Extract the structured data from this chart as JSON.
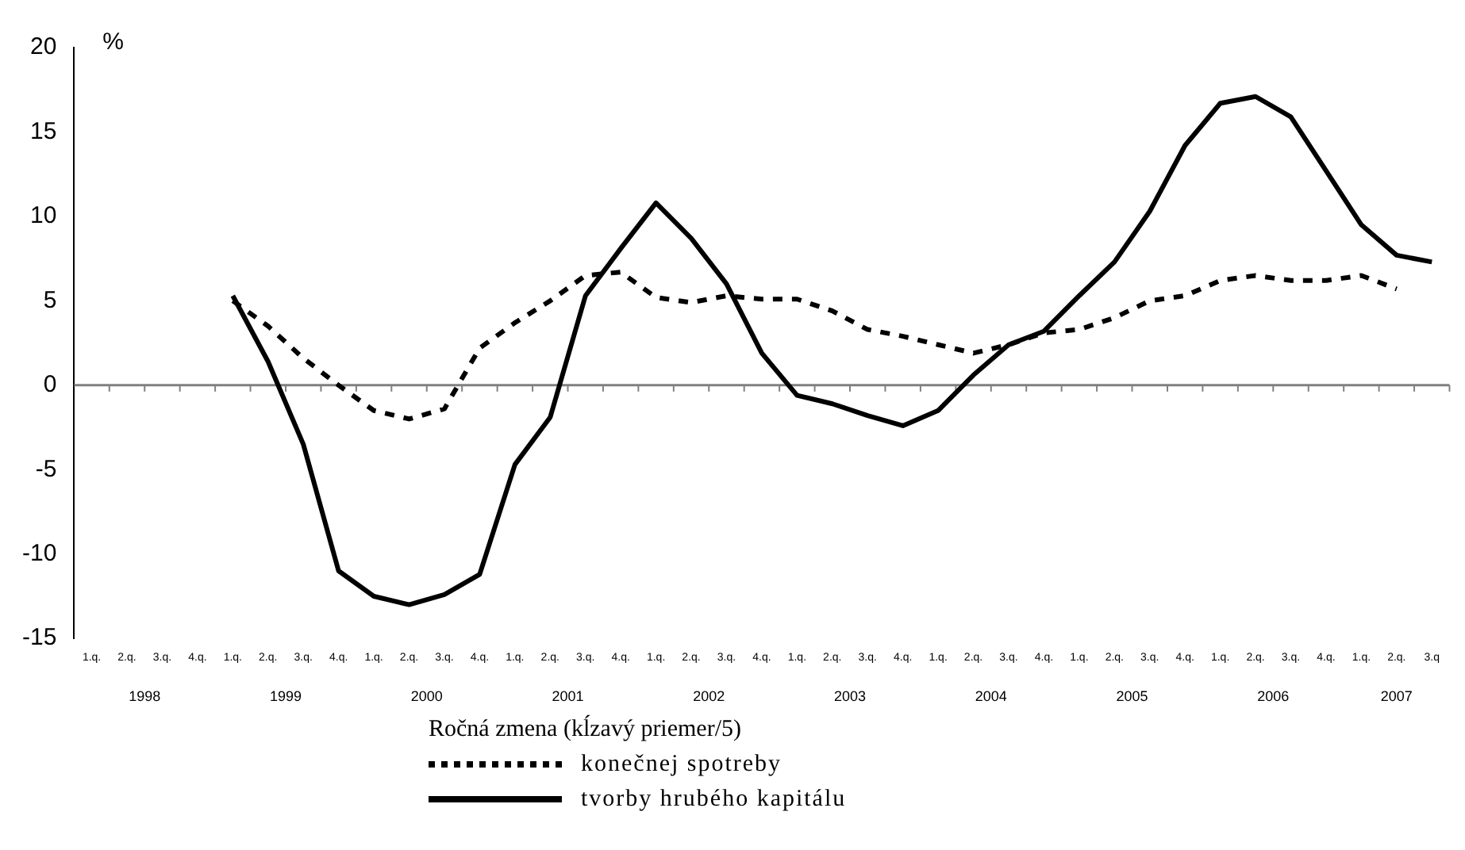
{
  "chart_data": {
    "type": "line",
    "ylabel": "%",
    "legend_title": "Ročná zmena (kĺzavý priemer/5)",
    "categories": [
      "1.q.",
      "2.q.",
      "3.q.",
      "4.q.",
      "1.q.",
      "2.q.",
      "3.q.",
      "4.q.",
      "1.q.",
      "2.q.",
      "3.q.",
      "4.q.",
      "1.q.",
      "2.q.",
      "3.q.",
      "4.q.",
      "1.q.",
      "2.q.",
      "3.q.",
      "4.q.",
      "1.q.",
      "2.q.",
      "3.q.",
      "4.q.",
      "1.q.",
      "2.q.",
      "3.q.",
      "4.q.",
      "1.q.",
      "2.q.",
      "3.q.",
      "4.q.",
      "1.q.",
      "2.q.",
      "3.q.",
      "4.q.",
      "1.q.",
      "2.q.",
      "3.q"
    ],
    "series": [
      {
        "name": "konečnej spotreby",
        "color": "#000000",
        "line_style": "dashed",
        "values": [
          null,
          null,
          null,
          null,
          5.0,
          3.5,
          1.6,
          0,
          -1.5,
          -2.0,
          -1.4,
          2.2,
          3.7,
          5.0,
          6.5,
          6.7,
          5.2,
          4.9,
          5.3,
          5.1,
          5.1,
          4.4,
          3.3,
          2.9,
          2.4,
          1.9,
          2.4,
          3.1,
          3.3,
          4.0,
          5.0,
          5.3,
          6.2,
          6.5,
          6.2,
          6.2,
          6.5,
          5.7,
          null
        ]
      },
      {
        "name": "tvorby hrubého kapitálu",
        "color": "#000000",
        "line_style": "solid",
        "values": [
          null,
          null,
          null,
          null,
          5.3,
          1.4,
          -3.5,
          -11.0,
          -12.5,
          -13.0,
          -12.4,
          -11.2,
          -4.7,
          -1.9,
          5.3,
          8.1,
          10.8,
          8.7,
          6.0,
          1.9,
          -0.6,
          -1.1,
          -1.8,
          -2.4,
          -1.5,
          0.6,
          2.4,
          3.2,
          5.3,
          7.3,
          10.3,
          14.2,
          16.7,
          17.1,
          15.9,
          12.7,
          9.5,
          7.7,
          7.3
        ]
      }
    ],
    "ylim": [
      -15,
      20
    ],
    "yticks": [
      -15,
      -10,
      -5,
      0,
      5,
      10,
      15,
      20
    ],
    "grid": false,
    "legend": "bottom",
    "marker": "none",
    "ref_lines": [
      {
        "axis": "y",
        "value": 0,
        "color": "#808080"
      }
    ],
    "annotations": [
      "1998",
      "1999",
      "2000",
      "2001",
      "2002",
      "2003",
      "2004",
      "2005",
      "2006",
      "2007"
    ]
  }
}
